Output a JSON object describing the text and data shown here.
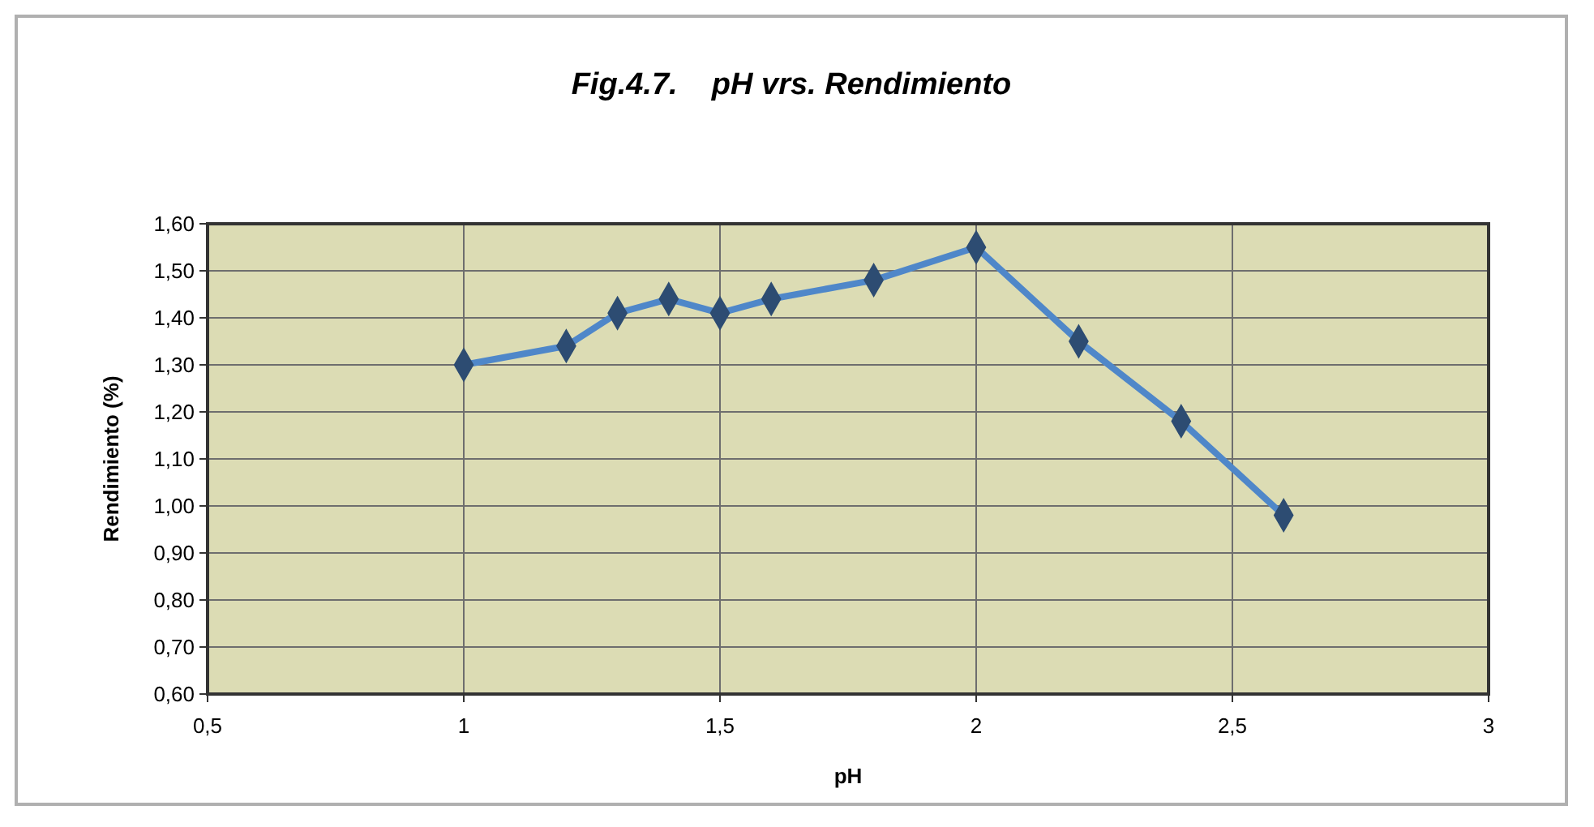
{
  "chart_data": {
    "type": "line",
    "title": "Fig.4.7.    pH vrs. Rendimiento",
    "xlabel": "pH",
    "ylabel": "Rendimiento (%)",
    "x": [
      1,
      1.2,
      1.3,
      1.4,
      1.5,
      1.6,
      1.8,
      2,
      2.2,
      2.4,
      2.6
    ],
    "series": [
      {
        "color": "#4f87c9",
        "values": [
          1.3,
          1.34,
          1.41,
          1.44,
          1.41,
          1.44,
          1.48,
          1.55,
          1.35,
          1.18,
          0.98
        ]
      }
    ],
    "xlim": [
      0.5,
      3
    ],
    "xticks": [
      {
        "value": 0.5,
        "label": "0,5"
      },
      1,
      {
        "value": 1.5,
        "label": "1,5"
      },
      2,
      {
        "value": 2.5,
        "label": "2,5"
      },
      3
    ],
    "ylim": [
      0.6,
      1.6
    ],
    "yticks": [
      {
        "value": 0.6,
        "label": "0,60"
      },
      {
        "value": 0.7,
        "label": "0,70"
      },
      {
        "value": 0.8,
        "label": "0,80"
      },
      {
        "value": 0.9,
        "label": "0,90"
      },
      {
        "value": 1.0,
        "label": "1,00"
      },
      {
        "value": 1.1,
        "label": "1,10"
      },
      {
        "value": 1.2,
        "label": "1,20"
      },
      {
        "value": 1.3,
        "label": "1,30"
      },
      {
        "value": 1.4,
        "label": "1,40"
      },
      {
        "value": 1.5,
        "label": "1,50"
      },
      {
        "value": 1.6,
        "label": "1,60"
      }
    ],
    "grid": true,
    "marker": "diamond",
    "line_style": "solid"
  }
}
